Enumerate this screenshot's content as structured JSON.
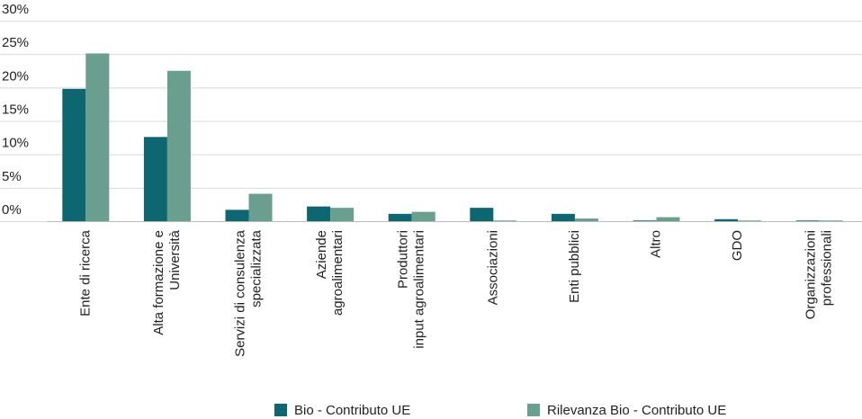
{
  "chart_data": {
    "type": "bar",
    "categories": [
      "Ente di ricerca",
      "Alta formazione e\nUniversità",
      "Servizi di consulenza\nspecializzata",
      "Aziende\nagroalimentari",
      "Produttori\ninput agroalimentari",
      "Associazioni",
      "Enti pubblici",
      "Altro",
      "GDO",
      "Organizzazioni\nprofessionali"
    ],
    "series": [
      {
        "name": "Bio - Contributo UE",
        "color": "#0d6670",
        "values": [
          19.8,
          12.6,
          1.7,
          2.2,
          1.1,
          2.0,
          1.1,
          0.1,
          0.3,
          0.1
        ]
      },
      {
        "name": "Rilevanza Bio - Contributo UE",
        "color": "#6a9f8f",
        "values": [
          25.1,
          22.5,
          4.1,
          2.0,
          1.4,
          0.1,
          0.4,
          0.6,
          0.1,
          0.1
        ]
      }
    ],
    "ylim": [
      0,
      30
    ],
    "yticks": [
      {
        "value": 0,
        "label": "0%"
      },
      {
        "value": 5,
        "label": "5%"
      },
      {
        "value": 10,
        "label": "10%"
      },
      {
        "value": 15,
        "label": "15%"
      },
      {
        "value": 20,
        "label": "20%"
      },
      {
        "value": 25,
        "label": "25%"
      },
      {
        "value": 30,
        "label": "30%"
      }
    ],
    "grid": true,
    "legend": "bottom"
  }
}
